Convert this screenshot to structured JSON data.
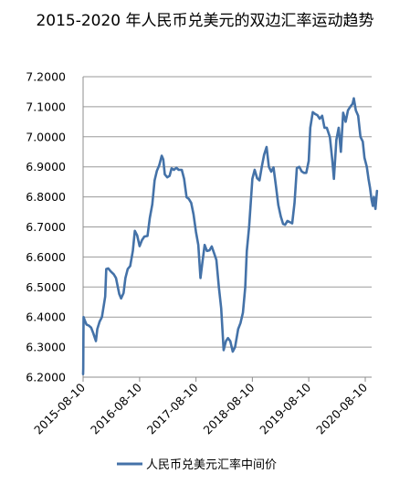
{
  "chart_data": {
    "type": "line",
    "title": "2015-2020 年人民币兑美元的双边汇率运动趋势",
    "xlabel": "",
    "ylabel": "",
    "ylim": [
      6.2,
      7.2
    ],
    "y_ticks": [
      "7.2000",
      "7.1000",
      "7.0000",
      "6.9000",
      "6.8000",
      "6.7000",
      "6.6000",
      "6.5000",
      "6.4000",
      "6.3000",
      "6.2000"
    ],
    "x_ticks": [
      "2015-08-10",
      "2016-08-10",
      "2017-08-10",
      "2018-08-10",
      "2019-08-10",
      "2020-08-10"
    ],
    "grid": "horizontal",
    "legend_position": "bottom",
    "color": "#4472A8",
    "series": [
      {
        "name": "人民币兑美元汇率中间价",
        "points": [
          [
            "2015-08-10",
            6.21
          ],
          [
            "2015-08-11",
            6.229
          ],
          [
            "2015-08-12",
            6.33
          ],
          [
            "2015-08-13",
            6.4
          ],
          [
            "2015-08-20",
            6.39
          ],
          [
            "2015-09-01",
            6.375
          ],
          [
            "2015-09-15",
            6.372
          ],
          [
            "2015-10-01",
            6.365
          ],
          [
            "2015-10-15",
            6.346
          ],
          [
            "2015-11-01",
            6.32
          ],
          [
            "2015-11-10",
            6.36
          ],
          [
            "2015-11-25",
            6.385
          ],
          [
            "2015-12-10",
            6.4
          ],
          [
            "2015-12-31",
            6.468
          ],
          [
            "2016-01-07",
            6.56
          ],
          [
            "2016-01-20",
            6.562
          ],
          [
            "2016-02-05",
            6.552
          ],
          [
            "2016-02-25",
            6.542
          ],
          [
            "2016-03-10",
            6.53
          ],
          [
            "2016-03-31",
            6.477
          ],
          [
            "2016-04-12",
            6.462
          ],
          [
            "2016-04-28",
            6.48
          ],
          [
            "2016-05-10",
            6.53
          ],
          [
            "2016-05-25",
            6.56
          ],
          [
            "2016-06-10",
            6.57
          ],
          [
            "2016-06-27",
            6.62
          ],
          [
            "2016-07-10",
            6.687
          ],
          [
            "2016-07-25",
            6.672
          ],
          [
            "2016-08-10",
            6.636
          ],
          [
            "2016-08-25",
            6.656
          ],
          [
            "2016-09-10",
            6.668
          ],
          [
            "2016-09-30",
            6.67
          ],
          [
            "2016-10-15",
            6.73
          ],
          [
            "2016-10-31",
            6.775
          ],
          [
            "2016-11-15",
            6.855
          ],
          [
            "2016-11-30",
            6.887
          ],
          [
            "2016-12-15",
            6.905
          ],
          [
            "2016-12-31",
            6.937
          ],
          [
            "2017-01-10",
            6.925
          ],
          [
            "2017-01-20",
            6.875
          ],
          [
            "2017-02-05",
            6.865
          ],
          [
            "2017-02-20",
            6.87
          ],
          [
            "2017-03-05",
            6.895
          ],
          [
            "2017-03-20",
            6.89
          ],
          [
            "2017-04-05",
            6.897
          ],
          [
            "2017-04-20",
            6.89
          ],
          [
            "2017-05-10",
            6.89
          ],
          [
            "2017-05-25",
            6.86
          ],
          [
            "2017-06-10",
            6.799
          ],
          [
            "2017-06-25",
            6.793
          ],
          [
            "2017-07-10",
            6.78
          ],
          [
            "2017-07-25",
            6.742
          ],
          [
            "2017-08-10",
            6.683
          ],
          [
            "2017-08-25",
            6.64
          ],
          [
            "2017-09-08",
            6.53
          ],
          [
            "2017-09-20",
            6.58
          ],
          [
            "2017-10-05",
            6.64
          ],
          [
            "2017-10-20",
            6.62
          ],
          [
            "2017-11-05",
            6.622
          ],
          [
            "2017-11-20",
            6.635
          ],
          [
            "2017-12-05",
            6.613
          ],
          [
            "2017-12-20",
            6.59
          ],
          [
            "2018-01-05",
            6.5
          ],
          [
            "2018-01-20",
            6.43
          ],
          [
            "2018-02-05",
            6.29
          ],
          [
            "2018-02-20",
            6.32
          ],
          [
            "2018-03-05",
            6.33
          ],
          [
            "2018-03-20",
            6.32
          ],
          [
            "2018-04-05",
            6.285
          ],
          [
            "2018-04-20",
            6.3
          ],
          [
            "2018-05-10",
            6.36
          ],
          [
            "2018-05-25",
            6.38
          ],
          [
            "2018-06-10",
            6.415
          ],
          [
            "2018-06-25",
            6.5
          ],
          [
            "2018-07-05",
            6.62
          ],
          [
            "2018-07-20",
            6.7
          ],
          [
            "2018-08-10",
            6.86
          ],
          [
            "2018-08-25",
            6.89
          ],
          [
            "2018-09-10",
            6.862
          ],
          [
            "2018-09-25",
            6.855
          ],
          [
            "2018-10-10",
            6.9
          ],
          [
            "2018-10-25",
            6.94
          ],
          [
            "2018-11-10",
            6.966
          ],
          [
            "2018-11-25",
            6.9
          ],
          [
            "2018-12-10",
            6.884
          ],
          [
            "2018-12-25",
            6.898
          ],
          [
            "2019-01-10",
            6.835
          ],
          [
            "2019-01-25",
            6.773
          ],
          [
            "2019-02-10",
            6.735
          ],
          [
            "2019-02-25",
            6.71
          ],
          [
            "2019-03-10",
            6.707
          ],
          [
            "2019-03-25",
            6.72
          ],
          [
            "2019-04-10",
            6.716
          ],
          [
            "2019-04-25",
            6.712
          ],
          [
            "2019-05-10",
            6.78
          ],
          [
            "2019-05-25",
            6.896
          ],
          [
            "2019-06-10",
            6.9
          ],
          [
            "2019-06-25",
            6.885
          ],
          [
            "2019-07-10",
            6.88
          ],
          [
            "2019-07-25",
            6.88
          ],
          [
            "2019-08-10",
            6.92
          ],
          [
            "2019-08-20",
            7.03
          ],
          [
            "2019-09-05",
            7.082
          ],
          [
            "2019-09-20",
            7.076
          ],
          [
            "2019-10-05",
            7.072
          ],
          [
            "2019-10-20",
            7.06
          ],
          [
            "2019-11-05",
            7.07
          ],
          [
            "2019-11-20",
            7.03
          ],
          [
            "2019-12-05",
            7.03
          ],
          [
            "2019-12-25",
            6.999
          ],
          [
            "2020-01-10",
            6.92
          ],
          [
            "2020-01-20",
            6.86
          ],
          [
            "2020-02-05",
            6.99
          ],
          [
            "2020-02-20",
            7.03
          ],
          [
            "2020-03-05",
            6.95
          ],
          [
            "2020-03-20",
            7.08
          ],
          [
            "2020-04-05",
            7.05
          ],
          [
            "2020-04-20",
            7.088
          ],
          [
            "2020-05-05",
            7.1
          ],
          [
            "2020-05-20",
            7.11
          ],
          [
            "2020-05-28",
            7.128
          ],
          [
            "2020-06-10",
            7.088
          ],
          [
            "2020-06-25",
            7.07
          ],
          [
            "2020-07-10",
            7.0
          ],
          [
            "2020-07-25",
            6.984
          ],
          [
            "2020-08-05",
            6.93
          ],
          [
            "2020-08-20",
            6.9
          ],
          [
            "2020-08-31",
            6.86
          ],
          [
            "2020-09-10",
            6.83
          ],
          [
            "2020-09-20",
            6.79
          ],
          [
            "2020-09-28",
            6.77
          ],
          [
            "2020-10-05",
            6.8
          ],
          [
            "2020-10-15",
            6.76
          ],
          [
            "2020-10-25",
            6.82
          ]
        ]
      }
    ]
  }
}
